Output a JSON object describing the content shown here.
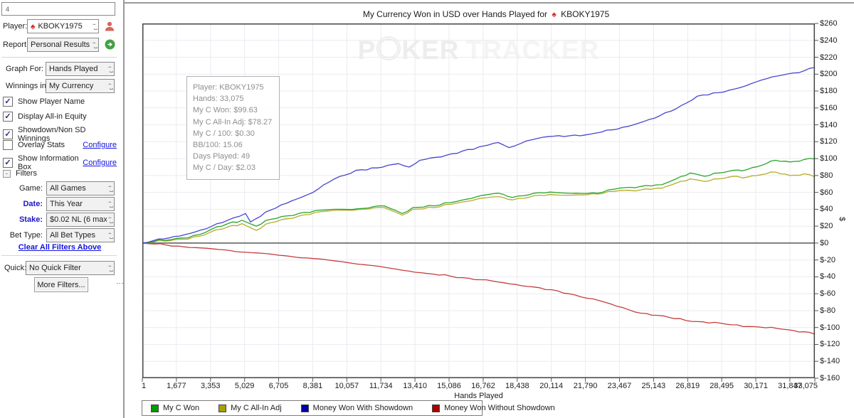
{
  "sidebar": {
    "top_input_value": "4",
    "player_label": "Player:",
    "player_value": "KBOKY1975",
    "report_label": "Report:",
    "report_value": "Personal Results",
    "graph_for_label": "Graph For:",
    "graph_for_value": "Hands Played",
    "winnings_label": "Winnings in:",
    "winnings_value": "My Currency",
    "checkboxes": [
      {
        "label": "Show Player Name",
        "checked": true
      },
      {
        "label": "Display All-in Equity",
        "checked": true
      },
      {
        "label": "Showdown/Non SD Winnings",
        "checked": true
      },
      {
        "label": "Overlay Stats",
        "checked": false,
        "link": "Configure"
      },
      {
        "label": "Show Information Box",
        "checked": true,
        "link": "Configure"
      }
    ],
    "filters_header": "Filters",
    "filters_collapse_glyph": "-",
    "filters": [
      {
        "label": "Game:",
        "value": "All Games",
        "active": false
      },
      {
        "label": "Date:",
        "value": "This Year",
        "active": true
      },
      {
        "label": "Stake:",
        "value": "$0.02 NL (6 max)",
        "active": true
      },
      {
        "label": "Bet Type:",
        "value": "All Bet Types",
        "active": false
      }
    ],
    "clear_filters_link": "Clear All Filters Above",
    "quick_label": "Quick:",
    "quick_value": "No Quick Filter",
    "more_filters_button": "More Filters..."
  },
  "chart": {
    "title_prefix": "My Currency Won in USD over Hands Played for",
    "title_player": "KBOKY1975",
    "watermark": {
      "left": "P",
      "mid": "KER",
      "right": "TRACKER"
    }
  },
  "info_box": {
    "lines": [
      "Player: KBOKY1975",
      "Hands: 33,075",
      "My C Won: $99.63",
      "My C All-In Adj: $78.27",
      "My C / 100: $0.30",
      "BB/100: 15.06",
      "Days Played: 49",
      "My C / Day: $2.03"
    ]
  },
  "legend": {
    "items": [
      {
        "label": "My C Won",
        "color": "#009b00"
      },
      {
        "label": "My C All-In Adj",
        "color": "#a8a000"
      },
      {
        "label": "Money Won With Showdown",
        "color": "#0000a8"
      },
      {
        "label": "Money Won Without Showdown",
        "color": "#a80000"
      }
    ]
  },
  "chart_data": {
    "type": "line",
    "title": "My Currency Won in USD over Hands Played for KBOKY1975",
    "xlabel": "Hands Played",
    "ylabel": "$",
    "xlim": [
      1,
      33075
    ],
    "ylim": [
      -160,
      260
    ],
    "ytick_step": 20,
    "ytick_prefix": "$",
    "grid": true,
    "legend_position": "bottom",
    "xticks": [
      1,
      1677,
      3353,
      5029,
      6705,
      8381,
      10057,
      11734,
      13410,
      15086,
      16762,
      18438,
      20114,
      21790,
      23467,
      25143,
      26819,
      28495,
      30171,
      31847,
      33075
    ],
    "xtick_labels": [
      "1",
      "1,677",
      "3,353",
      "5,029",
      "6,705",
      "8,381",
      "10,057",
      "11,734",
      "13,410",
      "15,086",
      "16,762",
      "18,438",
      "20,114",
      "21,790",
      "23,467",
      "25,143",
      "26,819",
      "28,495",
      "30,171",
      "31,847",
      "33,075"
    ],
    "series": [
      {
        "name": "My C Won",
        "color": "#2aa52a",
        "x": [
          1,
          1400,
          2800,
          4200,
          4900,
          5600,
          6300,
          7700,
          8750,
          9800,
          10850,
          11900,
          12775,
          13300,
          14350,
          15400,
          16450,
          17500,
          18200,
          19250,
          20300,
          21350,
          22400,
          23450,
          24500,
          25550,
          26250,
          26950,
          27650,
          28350,
          29050,
          29750,
          30450,
          31150,
          31850,
          32550,
          33075
        ],
        "y": [
          0,
          4,
          10,
          23,
          27,
          20,
          28,
          35,
          39,
          40,
          41,
          44,
          35,
          42,
          44,
          49,
          55,
          59,
          54,
          59,
          60,
          59,
          59,
          65,
          67,
          69,
          76,
          83,
          79,
          83,
          86,
          87,
          92,
          98,
          96,
          99,
          99.63
        ]
      },
      {
        "name": "My C All-In Adj",
        "color": "#b5ad2b",
        "x": [
          1,
          1400,
          2800,
          4200,
          4900,
          5600,
          6300,
          7700,
          8750,
          9800,
          10850,
          11900,
          12775,
          13300,
          14350,
          15400,
          16450,
          17500,
          18200,
          19250,
          20300,
          21350,
          22400,
          23450,
          24500,
          25550,
          26250,
          26950,
          27650,
          28350,
          29050,
          29750,
          30450,
          31150,
          31850,
          32550,
          33075
        ],
        "y": [
          0,
          3,
          8,
          19,
          23,
          15,
          24,
          32,
          37,
          39,
          40,
          42,
          33,
          40,
          42,
          47,
          52,
          55,
          51,
          56,
          57,
          57,
          58,
          62,
          63,
          65,
          71,
          76,
          73,
          76,
          79,
          78,
          81,
          84,
          80,
          82,
          78.27
        ]
      },
      {
        "name": "Money Won With Showdown",
        "color": "#4646cf",
        "x": [
          1,
          1050,
          2100,
          3150,
          4200,
          5075,
          5320,
          6300,
          7350,
          8400,
          9450,
          10500,
          11550,
          12600,
          13125,
          13650,
          14700,
          15750,
          16800,
          17500,
          18025,
          18900,
          19950,
          21000,
          22050,
          23100,
          24150,
          25200,
          26250,
          27300,
          28350,
          29400,
          30450,
          31500,
          32550,
          33075
        ],
        "y": [
          0,
          5,
          10,
          17,
          27,
          35,
          25,
          39,
          50,
          60,
          76,
          86,
          89,
          94,
          90,
          98,
          102,
          109,
          115,
          119,
          113,
          121,
          126,
          127,
          129,
          134,
          140,
          148,
          159,
          174,
          178,
          184,
          193,
          199,
          204,
          208
        ]
      },
      {
        "name": "Money Won Without Showdown",
        "color": "#c43c3c",
        "x": [
          1,
          3500,
          7000,
          9800,
          12250,
          14000,
          15750,
          17500,
          19250,
          21000,
          22750,
          24500,
          25900,
          27300,
          28700,
          30100,
          31500,
          32550,
          33075
        ],
        "y": [
          0,
          -7,
          -15,
          -22,
          -30,
          -36,
          -41,
          -46,
          -52,
          -60,
          -70,
          -83,
          -88,
          -93,
          -96,
          -99,
          -102,
          -105,
          -108
        ]
      }
    ]
  }
}
